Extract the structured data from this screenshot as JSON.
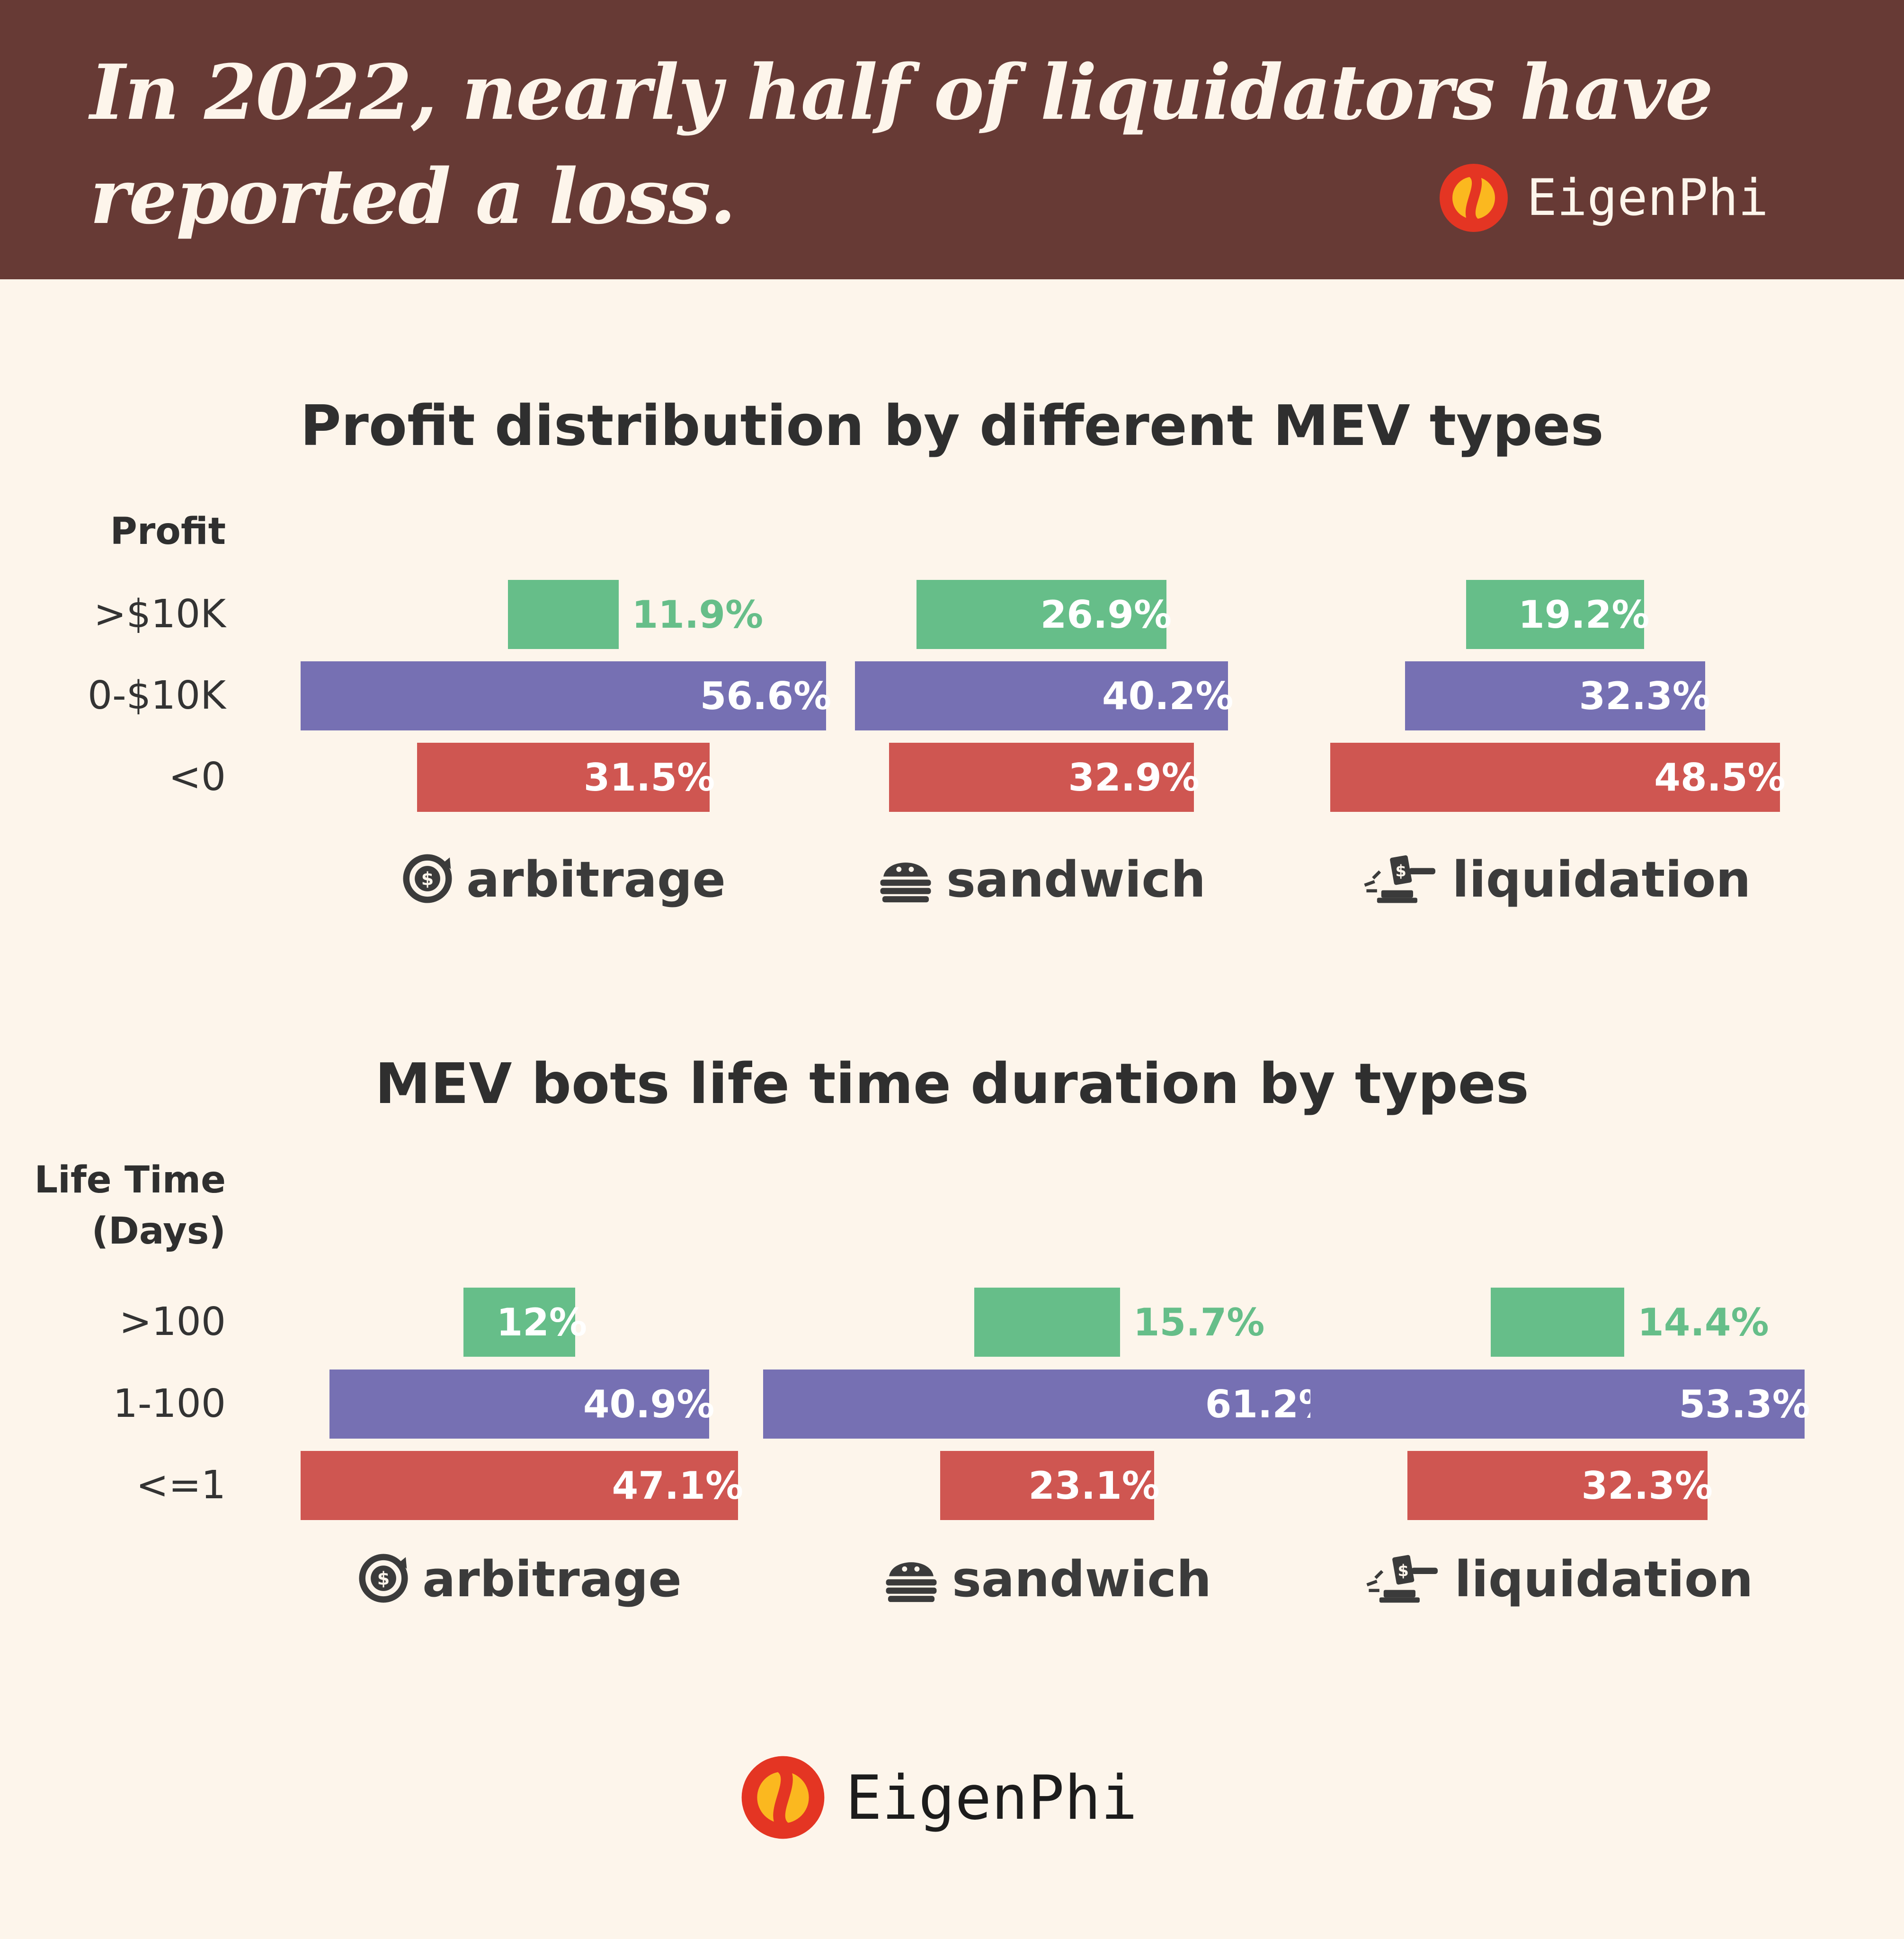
{
  "header": {
    "title_line1": "In 2022, nearly half of liquidators have",
    "title_line2": "reported a loss."
  },
  "logo": {
    "text": "EigenPhi",
    "icon": "eigenphi-logo-icon"
  },
  "colors": {
    "header_bg": "#673a35",
    "page_bg": "#fdf5eb",
    "green": "#66be89",
    "purple": "#7670b3",
    "red": "#cf5651",
    "text": "#2f2f2f"
  },
  "chart_data": [
    {
      "type": "bar",
      "title": "Profit distribution by different MEV types",
      "row_axis_label": "Profit",
      "rows": [
        ">$10K",
        "0-$10K",
        "<0"
      ],
      "row_colors": [
        "#66be89",
        "#7670b3",
        "#cf5651"
      ],
      "groups": [
        {
          "name": "arbitrage",
          "icon": "arbitrage-dollar-icon",
          "values": [
            11.9,
            56.6,
            31.5
          ],
          "labels": [
            "11.9%",
            "56.6%",
            "31.5%"
          ]
        },
        {
          "name": "sandwich",
          "icon": "sandwich-icon",
          "values": [
            26.9,
            40.2,
            32.9
          ],
          "labels": [
            "26.9%",
            "40.2%",
            "32.9%"
          ]
        },
        {
          "name": "liquidation",
          "icon": "gavel-icon",
          "values": [
            19.2,
            32.3,
            48.5
          ],
          "labels": [
            "19.2%",
            "32.3%",
            "48.5%"
          ]
        }
      ]
    },
    {
      "type": "bar",
      "title": "MEV bots life time duration by types",
      "row_axis_label": "Life Time\n(Days)",
      "rows": [
        ">100",
        "1-100",
        "<=1"
      ],
      "row_colors": [
        "#66be89",
        "#7670b3",
        "#cf5651"
      ],
      "groups": [
        {
          "name": "arbitrage",
          "icon": "arbitrage-dollar-icon",
          "values": [
            12,
            40.9,
            47.1
          ],
          "labels": [
            "12%",
            "40.9%",
            "47.1%"
          ]
        },
        {
          "name": "sandwich",
          "icon": "sandwich-icon",
          "values": [
            15.7,
            61.2,
            23.1
          ],
          "labels": [
            "15.7%",
            "61.2%",
            "23.1%"
          ]
        },
        {
          "name": "liquidation",
          "icon": "gavel-icon",
          "values": [
            14.4,
            53.3,
            32.3
          ],
          "labels": [
            "14.4%",
            "53.3%",
            "32.3%"
          ]
        }
      ]
    }
  ]
}
